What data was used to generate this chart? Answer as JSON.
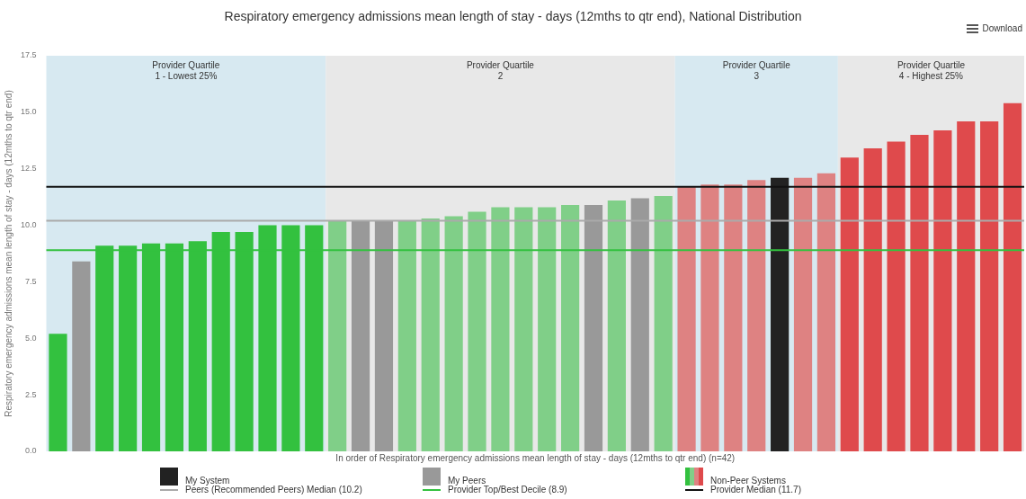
{
  "chart_data": {
    "type": "bar",
    "title": "Respiratory emergency admissions mean length of stay - days (12mths to qtr end), National Distribution",
    "xlabel": "In order of Respiratory emergency admissions mean length of stay - days (12mths to qtr end) (n=42)",
    "ylabel": "Respiratory emergency admissions mean length of stay - days (12mths to qtr end)",
    "categories": [
      null,
      null,
      null,
      null,
      null,
      null,
      null,
      null,
      null,
      null,
      null,
      null,
      null,
      null,
      null,
      null,
      null,
      null,
      null,
      null,
      null,
      null,
      null,
      null,
      null,
      null,
      null,
      null,
      null,
      null,
      null,
      null,
      null,
      null,
      null,
      null,
      null,
      null,
      null,
      null,
      null,
      null
    ],
    "values": [
      5.2,
      8.4,
      9.1,
      9.1,
      9.2,
      9.2,
      9.3,
      9.7,
      9.7,
      10.0,
      10.0,
      10.0,
      10.2,
      10.2,
      10.2,
      10.2,
      10.3,
      10.4,
      10.6,
      10.8,
      10.8,
      10.8,
      10.9,
      10.9,
      11.1,
      11.2,
      11.3,
      11.7,
      11.8,
      11.8,
      12.0,
      12.1,
      12.1,
      12.3,
      13.0,
      13.4,
      13.7,
      14.0,
      14.2,
      14.6,
      14.6,
      15.4
    ],
    "colors": [
      "#33c13f",
      "#999999",
      "#33c13f",
      "#33c13f",
      "#33c13f",
      "#33c13f",
      "#33c13f",
      "#33c13f",
      "#33c13f",
      "#33c13f",
      "#33c13f",
      "#33c13f",
      "#80cf88",
      "#999999",
      "#999999",
      "#80cf88",
      "#80cf88",
      "#80cf88",
      "#80cf88",
      "#80cf88",
      "#80cf88",
      "#80cf88",
      "#80cf88",
      "#999999",
      "#80cf88",
      "#999999",
      "#80cf88",
      "#de8282",
      "#de8282",
      "#de8282",
      "#de8282",
      "#222222",
      "#de8282",
      "#de8282",
      "#df4a4c",
      "#df4a4c",
      "#df4a4c",
      "#df4a4c",
      "#df4a4c",
      "#df4a4c",
      "#df4a4c",
      "#df4a4c"
    ],
    "ylim": [
      0,
      17.5
    ],
    "yticks": [
      {
        "value": 0,
        "label": "0.0"
      },
      {
        "value": 2.5,
        "label": "2.5"
      },
      {
        "value": 5,
        "label": "5.0"
      },
      {
        "value": 7.5,
        "label": "7.5"
      },
      {
        "value": 10,
        "label": "10.0"
      },
      {
        "value": 12.5,
        "label": "12.5"
      },
      {
        "value": 15,
        "label": "15.0"
      },
      {
        "value": 17.5,
        "label": "17.5"
      }
    ],
    "tick_labels": "y",
    "ref_lines": [
      {
        "axis": "y",
        "value": 10.2,
        "label": "Peers (Recommended Peers) Median (10.2)",
        "color": "#aaaaaa"
      },
      {
        "axis": "y",
        "value": 8.9,
        "label": "Provider Top/Best Decile (8.9)",
        "color": "#33c13f"
      },
      {
        "axis": "y",
        "value": 11.7,
        "label": "Provider Median (11.7)",
        "color": "#111111"
      }
    ],
    "annotations": [
      "Provider Quartile\n1 - Lowest 25%",
      "Provider Quartile\n2",
      "Provider Quartile\n3",
      "Provider Quartile\n4 - Highest 25%",
      "My System",
      "My Peers",
      "Non-Peer Systems",
      "Download"
    ],
    "legend": "bottom",
    "grid": false
  }
}
